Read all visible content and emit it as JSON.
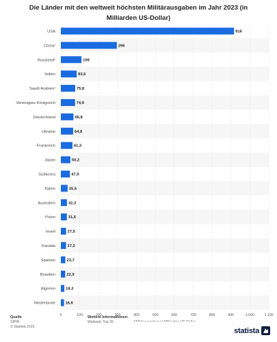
{
  "chart_data": {
    "type": "bar",
    "orientation": "horizontal",
    "title": "Die Länder mit den weltweit höchsten Militärausgaben im Jahr 2023 (in Milliarden US-Dollar)",
    "title_lines": [
      "Die Länder mit den weltweit höchsten Militärausgaben im Jahr 2023 (in",
      "Milliarden US-Dollar)"
    ],
    "xlabel": "Militärausgaben in Milliarden US-Dollar",
    "categories": [
      "USA",
      "China¹",
      "Russland¹",
      "Indien",
      "Saudi Arabien¹",
      "Vereinigtes Königreich",
      "Deutschland",
      "Ukraine",
      "Frankreich",
      "Japan",
      "Südkorea",
      "Italien",
      "Australien",
      "Polen",
      "Israel",
      "Kanada",
      "Spanien",
      "Brasilien",
      "Algerien",
      "Niederlande"
    ],
    "values": [
      916,
      296,
      109,
      83.6,
      75.8,
      74.9,
      66.8,
      64.8,
      61.3,
      50.2,
      47.9,
      35.5,
      32.3,
      31.6,
      27.5,
      27.2,
      23.7,
      22.9,
      18.3,
      16.6
    ],
    "value_labels": [
      "916",
      "296",
      "109",
      "83,6",
      "75,8",
      "74,9",
      "66,8",
      "64,8",
      "61,3",
      "50,2",
      "47,9",
      "35,5",
      "32,3",
      "31,6",
      "27,5",
      "27,2",
      "23,7",
      "22,9",
      "18,3",
      "16,6"
    ],
    "xlim": [
      0,
      1100
    ],
    "xticks": [
      0,
      100,
      200,
      300,
      400,
      500,
      600,
      700,
      800,
      900,
      1000,
      1100
    ],
    "xtick_labels": [
      "0",
      "100",
      "200",
      "300",
      "400",
      "500",
      "600",
      "700",
      "800",
      "900",
      "1.000",
      "1.100"
    ],
    "grid": true,
    "bar_color": "#1a6ae0"
  },
  "footer": {
    "source_heading": "Quelle",
    "source_name": "SIPRI",
    "copyright": "© Statista 2025",
    "info_heading": "Weitere Informationen:",
    "info_text": "Weltweit; Top 20"
  },
  "brand": {
    "name": "statista",
    "color": "#0d1b3f"
  }
}
